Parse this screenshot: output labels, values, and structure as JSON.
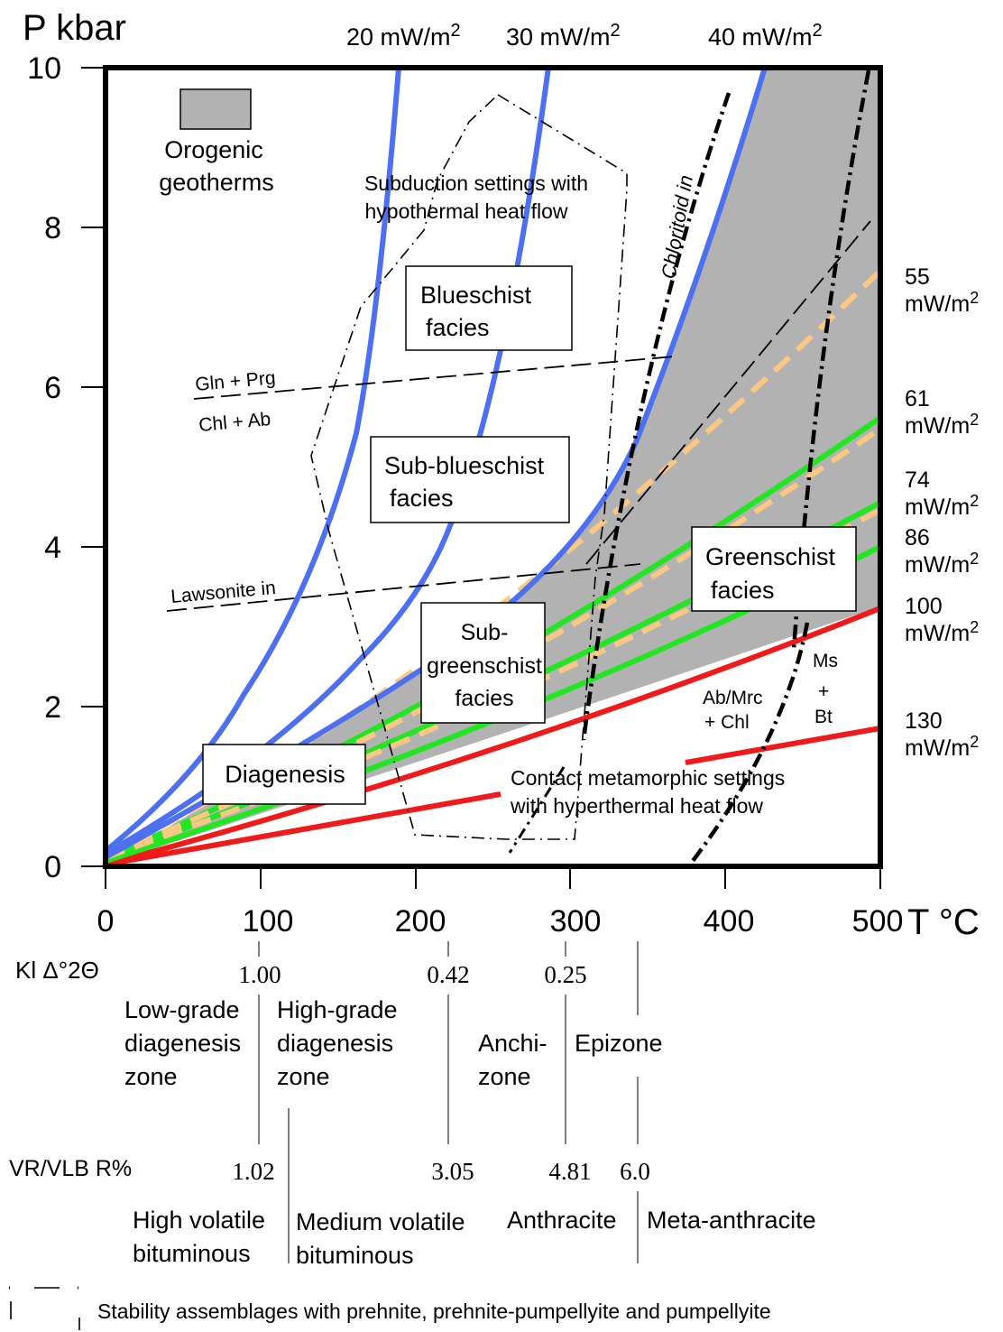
{
  "axes": {
    "y_label": "P kbar",
    "x_label": "T °C",
    "x_ticks": [
      "0",
      "100",
      "200",
      "300",
      "400",
      "500"
    ],
    "y_ticks": [
      "0",
      "2",
      "4",
      "6",
      "8",
      "10"
    ],
    "x_range": [
      0,
      500
    ],
    "y_range": [
      0,
      10
    ]
  },
  "top_geotherms": [
    "20 mW/m",
    "30 mW/m",
    "40 mW/m"
  ],
  "right_geotherms": [
    {
      "a": "55",
      "b": "mW/m"
    },
    {
      "a": "61",
      "b": "mW/m"
    },
    {
      "a": "74",
      "b": "mW/m"
    },
    {
      "a": "86",
      "b": "mW/m"
    },
    {
      "a": "100",
      "b": "mW/m"
    },
    {
      "a": "130",
      "b": "mW/m"
    }
  ],
  "superscript": "2",
  "legend": {
    "line1": "Orogenic",
    "line2": "geotherms",
    "swatch_color": "#b2b2b2"
  },
  "labels": {
    "subduction_1": "Subduction settings with",
    "subduction_2": "hypothermal heat flow",
    "chloritoid": "Chloritoid in",
    "gln_prg": "Gln + Prg",
    "chl_ab": "Chl + Ab",
    "lawsonite": "Lawsonite in",
    "ab_mrc_1": "Ab/Mrc",
    "ab_mrc_2": "+ Chl",
    "ms": "Ms",
    "plus": "+",
    "bt": "Bt",
    "contact_1": "Contact metamorphic settings",
    "contact_2": "with hyperthermal heat flow"
  },
  "facies": {
    "blueschist_1": "Blueschist",
    "blueschist_2": "facies",
    "subblueschist_1": "Sub-blueschist",
    "subblueschist_2": "facies",
    "greenschist_1": "Greenschist",
    "greenschist_2": "facies",
    "subgreenschist_1": "Sub-",
    "subgreenschist_2": "greenschist",
    "subgreenschist_3": "facies",
    "diagenesis": "Diagenesis"
  },
  "scales": {
    "kl_label": "Kl Δ°2Θ",
    "kl_values": [
      "1.00",
      "0.42",
      "0.25"
    ],
    "kl_zones": {
      "low_1": "Low-grade",
      "low_2": "diagenesis",
      "low_3": "zone",
      "high_1": "High-grade",
      "high_2": "diagenesis",
      "high_3": "zone",
      "anchi_1": "Anchi-",
      "anchi_2": "zone",
      "epi": "Epizone"
    },
    "vr_label": "VR/VLB R%",
    "vr_values": [
      "1.02",
      "3.05",
      "4.81",
      "6.0"
    ],
    "vr_zones": {
      "hv_1": "High volatile",
      "hv_2": "bituminous",
      "mv_1": "Medium volatile",
      "mv_2": "bituminous",
      "anthracite": "Anthracite",
      "meta": "Meta-anthracite"
    }
  },
  "footnote": "Stability assemblages with prehnite, prehnite-pumpellyite and pumpellyite",
  "colors": {
    "blue": "#4d70f0",
    "green": "#22e622",
    "red": "#f01a1a",
    "orange_dash": "#fac882",
    "shade": "#b2b2b2"
  }
}
